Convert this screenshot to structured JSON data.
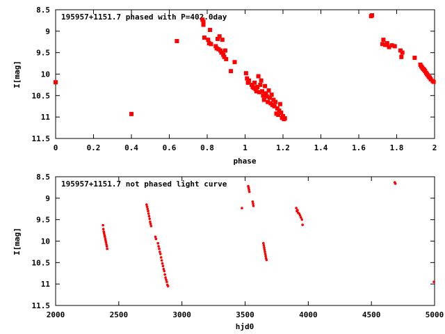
{
  "chart_data": [
    {
      "type": "scatter",
      "title": "195957+1151.7 phased with P=402.0day",
      "xlabel": "phase",
      "ylabel": "I[mag]",
      "xlim": [
        0,
        2
      ],
      "ylim": [
        11.5,
        8.5
      ],
      "y_inverted": true,
      "x_ticks": [
        "0",
        "0.2",
        "0.4",
        "0.6",
        "0.8",
        "1",
        "1.2",
        "1.4",
        "1.6",
        "1.8",
        "2"
      ],
      "y_ticks": [
        "8.5",
        "9",
        "9.5",
        "10",
        "10.5",
        "11",
        "11.5"
      ],
      "marker_color": "#ff0000",
      "marker": "cross-square",
      "grid": false,
      "points": [
        [
          0.0,
          10.19
        ],
        [
          0.4,
          10.93
        ],
        [
          0.64,
          9.23
        ],
        [
          0.775,
          8.73
        ],
        [
          0.78,
          8.78
        ],
        [
          0.78,
          8.85
        ],
        [
          0.785,
          9.15
        ],
        [
          0.805,
          9.2
        ],
        [
          0.81,
          9.28
        ],
        [
          0.815,
          8.97
        ],
        [
          0.82,
          9.3
        ],
        [
          0.845,
          9.35
        ],
        [
          0.85,
          9.4
        ],
        [
          0.855,
          9.18
        ],
        [
          0.86,
          9.42
        ],
        [
          0.865,
          9.12
        ],
        [
          0.87,
          9.45
        ],
        [
          0.875,
          9.5
        ],
        [
          0.88,
          9.2
        ],
        [
          0.885,
          9.55
        ],
        [
          0.89,
          9.6
        ],
        [
          0.895,
          9.45
        ],
        [
          0.9,
          9.65
        ],
        [
          0.925,
          9.93
        ],
        [
          0.945,
          9.72
        ],
        [
          1.005,
          9.98
        ],
        [
          1.01,
          10.1
        ],
        [
          1.015,
          10.2
        ],
        [
          1.02,
          10.15
        ],
        [
          1.035,
          10.25
        ],
        [
          1.04,
          10.3
        ],
        [
          1.045,
          10.32
        ],
        [
          1.05,
          10.2
        ],
        [
          1.055,
          10.35
        ],
        [
          1.06,
          10.4
        ],
        [
          1.065,
          10.3
        ],
        [
          1.07,
          10.05
        ],
        [
          1.075,
          10.42
        ],
        [
          1.08,
          10.25
        ],
        [
          1.085,
          10.15
        ],
        [
          1.09,
          10.4
        ],
        [
          1.095,
          10.5
        ],
        [
          1.1,
          10.6
        ],
        [
          1.105,
          10.28
        ],
        [
          1.11,
          10.45
        ],
        [
          1.115,
          10.52
        ],
        [
          1.12,
          10.65
        ],
        [
          1.125,
          10.38
        ],
        [
          1.13,
          10.55
        ],
        [
          1.135,
          10.68
        ],
        [
          1.14,
          10.48
        ],
        [
          1.145,
          10.72
        ],
        [
          1.15,
          10.6
        ],
        [
          1.155,
          10.75
        ],
        [
          1.16,
          10.65
        ],
        [
          1.165,
          10.92
        ],
        [
          1.17,
          10.8
        ],
        [
          1.175,
          10.95
        ],
        [
          1.18,
          10.85
        ],
        [
          1.185,
          10.7
        ],
        [
          1.19,
          10.9
        ],
        [
          1.195,
          11.02
        ],
        [
          1.2,
          10.98
        ],
        [
          1.205,
          11.05
        ],
        [
          1.21,
          11.03
        ],
        [
          1.665,
          8.65
        ],
        [
          1.67,
          8.63
        ],
        [
          1.725,
          9.3
        ],
        [
          1.73,
          9.2
        ],
        [
          1.74,
          9.32
        ],
        [
          1.75,
          9.28
        ],
        [
          1.76,
          9.37
        ],
        [
          1.775,
          9.33
        ],
        [
          1.79,
          9.35
        ],
        [
          1.82,
          9.45
        ],
        [
          1.825,
          9.6
        ],
        [
          1.83,
          9.5
        ],
        [
          1.895,
          9.62
        ],
        [
          1.925,
          9.78
        ],
        [
          1.93,
          9.82
        ],
        [
          1.935,
          9.85
        ],
        [
          1.94,
          9.88
        ],
        [
          1.945,
          9.9
        ],
        [
          1.95,
          9.93
        ],
        [
          1.955,
          9.97
        ],
        [
          1.96,
          10.0
        ],
        [
          1.965,
          10.03
        ],
        [
          1.97,
          10.06
        ],
        [
          1.975,
          10.08
        ],
        [
          1.98,
          10.12
        ],
        [
          1.99,
          10.16
        ],
        [
          1.995,
          10.18
        ]
      ]
    },
    {
      "type": "scatter",
      "title": "195957+1151.7 not phased light curve",
      "xlabel": "hjd0",
      "ylabel": "I[mag]",
      "xlim": [
        2000,
        5000
      ],
      "ylim": [
        11.5,
        8.5
      ],
      "y_inverted": true,
      "x_ticks": [
        "2000",
        "2500",
        "3000",
        "3500",
        "4000",
        "4500",
        "5000"
      ],
      "y_ticks": [
        "8.5",
        "9",
        "9.5",
        "10",
        "10.5",
        "11",
        "11.5"
      ],
      "marker_color": "#ff0000",
      "marker": "small-dot",
      "grid": false,
      "points": [
        [
          2375,
          9.63
        ],
        [
          2378,
          9.72
        ],
        [
          2381,
          9.78
        ],
        [
          2384,
          9.82
        ],
        [
          2387,
          9.86
        ],
        [
          2390,
          9.9
        ],
        [
          2393,
          9.95
        ],
        [
          2396,
          9.99
        ],
        [
          2399,
          10.03
        ],
        [
          2402,
          10.08
        ],
        [
          2405,
          10.12
        ],
        [
          2408,
          10.18
        ],
        [
          2720,
          9.15
        ],
        [
          2724,
          9.2
        ],
        [
          2728,
          9.25
        ],
        [
          2732,
          9.3
        ],
        [
          2736,
          9.36
        ],
        [
          2740,
          9.42
        ],
        [
          2744,
          9.48
        ],
        [
          2748,
          9.55
        ],
        [
          2752,
          9.6
        ],
        [
          2756,
          9.65
        ],
        [
          2790,
          9.9
        ],
        [
          2795,
          9.95
        ],
        [
          2810,
          10.05
        ],
        [
          2815,
          10.12
        ],
        [
          2820,
          10.18
        ],
        [
          2825,
          10.25
        ],
        [
          2830,
          10.3
        ],
        [
          2835,
          10.38
        ],
        [
          2840,
          10.45
        ],
        [
          2845,
          10.52
        ],
        [
          2850,
          10.58
        ],
        [
          2855,
          10.65
        ],
        [
          2860,
          10.7
        ],
        [
          2865,
          10.78
        ],
        [
          2870,
          10.85
        ],
        [
          2875,
          10.9
        ],
        [
          2880,
          10.95
        ],
        [
          2885,
          11.02
        ],
        [
          2890,
          11.05
        ],
        [
          3475,
          9.23
        ],
        [
          3525,
          8.72
        ],
        [
          3528,
          8.76
        ],
        [
          3531,
          8.8
        ],
        [
          3534,
          8.85
        ],
        [
          3560,
          9.08
        ],
        [
          3563,
          9.13
        ],
        [
          3566,
          9.18
        ],
        [
          3645,
          10.05
        ],
        [
          3648,
          10.1
        ],
        [
          3651,
          10.15
        ],
        [
          3654,
          10.2
        ],
        [
          3657,
          10.25
        ],
        [
          3660,
          10.3
        ],
        [
          3663,
          10.35
        ],
        [
          3666,
          10.4
        ],
        [
          3670,
          10.44
        ],
        [
          3905,
          9.23
        ],
        [
          3910,
          9.3
        ],
        [
          3915,
          9.28
        ],
        [
          3920,
          9.34
        ],
        [
          3928,
          9.36
        ],
        [
          3935,
          9.4
        ],
        [
          3942,
          9.45
        ],
        [
          3950,
          9.5
        ],
        [
          3955,
          9.62
        ],
        [
          4685,
          8.63
        ],
        [
          4690,
          8.66
        ],
        [
          4995,
          10.95
        ]
      ]
    }
  ]
}
